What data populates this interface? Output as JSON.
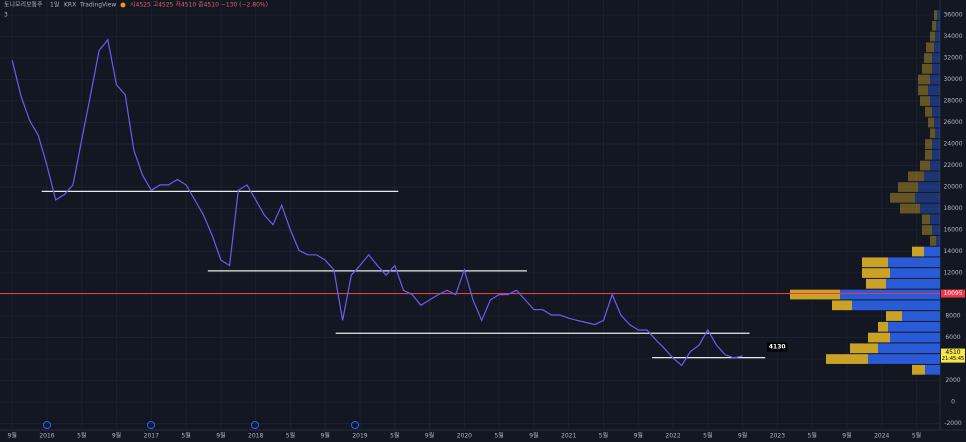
{
  "header": {
    "symbol": "토니모리보통주",
    "interval": "1일",
    "exchange": "KRX",
    "source": "TradingView",
    "ohlc": "시4525 고4525 저4510 종4510 −130 (−2.80%)",
    "indicators": "3"
  },
  "chart_data": {
    "type": "line",
    "ylim": [
      -2600,
      37400
    ],
    "xlim": [
      -1.4,
      106.7
    ],
    "grid": true,
    "yticks": [
      -2000,
      0,
      2000,
      4000,
      6000,
      8000,
      10000,
      12000,
      14000,
      16000,
      18000,
      20000,
      22000,
      24000,
      26000,
      28000,
      30000,
      32000,
      34000,
      36000
    ],
    "xticks": [
      {
        "value": 0,
        "label": "9월"
      },
      {
        "value": 4,
        "label": "2016"
      },
      {
        "value": 8,
        "label": "5월"
      },
      {
        "value": 12,
        "label": "9월"
      },
      {
        "value": 16,
        "label": "2017"
      },
      {
        "value": 20,
        "label": "5월"
      },
      {
        "value": 24,
        "label": "9월"
      },
      {
        "value": 28,
        "label": "2018"
      },
      {
        "value": 32,
        "label": "5월"
      },
      {
        "value": 36,
        "label": "9월"
      },
      {
        "value": 40,
        "label": "2019"
      },
      {
        "value": 44,
        "label": "5월"
      },
      {
        "value": 48,
        "label": "9월"
      },
      {
        "value": 52,
        "label": "2020"
      },
      {
        "value": 56,
        "label": "5월"
      },
      {
        "value": 60,
        "label": "9월"
      },
      {
        "value": 64,
        "label": "2021"
      },
      {
        "value": 68,
        "label": "5월"
      },
      {
        "value": 72,
        "label": "9월"
      },
      {
        "value": 76,
        "label": "2022"
      },
      {
        "value": 80,
        "label": "5월"
      },
      {
        "value": 84,
        "label": "9월"
      },
      {
        "value": 88,
        "label": "2023"
      },
      {
        "value": 92,
        "label": "5월"
      },
      {
        "value": 96,
        "label": "9월"
      },
      {
        "value": 100,
        "label": "2024"
      },
      {
        "value": 104,
        "label": "5월"
      }
    ],
    "series": [
      {
        "color": "#6a5cf0",
        "x": [
          0,
          1,
          2,
          3,
          4,
          5,
          6,
          7,
          8,
          9,
          10,
          11,
          12,
          13,
          14,
          15,
          16,
          17,
          18,
          19,
          20,
          21,
          22,
          23,
          24,
          25,
          26,
          27,
          28,
          29,
          30,
          31,
          32,
          33,
          34,
          35,
          36,
          37,
          38,
          39,
          40,
          41,
          42,
          43,
          44,
          45,
          46,
          47,
          48,
          49,
          50,
          51,
          52,
          53,
          54,
          55,
          56,
          57,
          58,
          59,
          60,
          61,
          62,
          63,
          64,
          65,
          66,
          67,
          68,
          69,
          70,
          71,
          72,
          73,
          74,
          75,
          76,
          77,
          78,
          79,
          80,
          81,
          82,
          83,
          84
        ],
        "values": [
          31800,
          28500,
          26200,
          24800,
          22000,
          18800,
          19300,
          20200,
          24400,
          28500,
          32700,
          33700,
          29500,
          28600,
          23400,
          21100,
          19700,
          20200,
          20200,
          20700,
          20200,
          18800,
          17400,
          15500,
          13200,
          12700,
          19700,
          20200,
          18800,
          17400,
          16500,
          18300,
          16000,
          14100,
          13700,
          13700,
          13200,
          12300,
          7600,
          11800,
          12700,
          13700,
          12700,
          11800,
          12700,
          10400,
          10000,
          9000,
          9500,
          10000,
          10400,
          10000,
          12300,
          9500,
          7600,
          9500,
          10000,
          10000,
          10400,
          9500,
          8600,
          8600,
          8100,
          8100,
          7800,
          7600,
          7400,
          7200,
          7600,
          10000,
          8100,
          7200,
          6700,
          6700,
          5800,
          5000,
          4100,
          3400,
          4700,
          5300,
          6700,
          5300,
          4400,
          4100,
          4300
        ]
      }
    ],
    "levels": [
      {
        "value": 19600,
        "x_start": 3.4,
        "x_end": 44.4
      },
      {
        "value": 12200,
        "x_start": 22.5,
        "x_end": 59.2
      },
      {
        "value": 6400,
        "x_start": 37.2,
        "x_end": 84.8
      },
      {
        "value": 4130,
        "x_start": 73.6,
        "x_end": 86.6
      }
    ],
    "price_line": {
      "value": 10095,
      "color": "#f23645"
    },
    "last_price": 4510,
    "countdown": "21:45:45",
    "volume_profile": {
      "xlim": [
        0,
        150
      ],
      "value_area": [
        2500,
        14500
      ],
      "up_color": "#2a5bd7",
      "down_color": "#c9a227",
      "bins": [
        2500,
        3500,
        4500,
        5500,
        6500,
        7500,
        8500,
        9500,
        10500,
        11500,
        12500,
        13500,
        14500,
        15500,
        16500,
        17500,
        18500,
        19500,
        20500,
        21500,
        22500,
        23500,
        24500,
        25500,
        26500,
        27500,
        28500,
        29500,
        30500,
        31500,
        32500,
        33500,
        34500,
        35500,
        36500
      ],
      "up": [
        15,
        72,
        62,
        50,
        52,
        38,
        88,
        100,
        54,
        50,
        52,
        16,
        4,
        8,
        10,
        20,
        25,
        22,
        16,
        10,
        8,
        8,
        5,
        6,
        8,
        10,
        12,
        10,
        8,
        8,
        6,
        5,
        4,
        3
      ],
      "down": [
        13,
        42,
        28,
        22,
        10,
        16,
        20,
        50,
        20,
        28,
        26,
        12,
        6,
        10,
        8,
        20,
        25,
        20,
        16,
        10,
        7,
        7,
        5,
        6,
        7,
        10,
        10,
        12,
        10,
        8,
        8,
        5,
        4,
        3
      ]
    }
  }
}
